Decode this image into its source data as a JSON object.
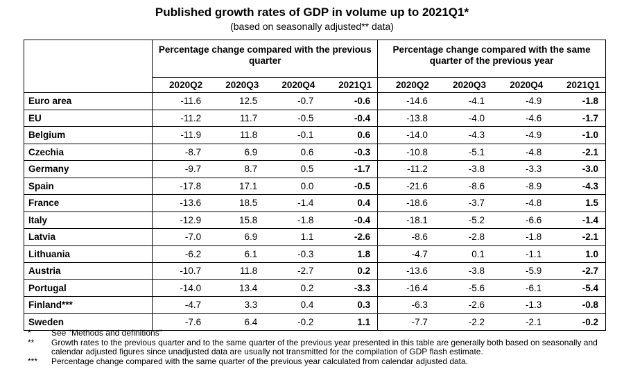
{
  "title": "Published growth rates of GDP in volume up to 2021Q1*",
  "subtitle": "(based on seasonally adjusted** data)",
  "groups": {
    "prev_quarter": "Percentage change compared with the previous quarter",
    "prev_year": "Percentage change compared with the same quarter of the previous year"
  },
  "columns": [
    "2020Q2",
    "2020Q3",
    "2020Q4",
    "2021Q1",
    "2020Q2",
    "2020Q3",
    "2020Q4",
    "2021Q1"
  ],
  "rows": [
    {
      "country": "Euro area",
      "v": [
        "-11.6",
        "12.5",
        "-0.7",
        "-0.6",
        "-14.6",
        "-4.1",
        "-4.9",
        "-1.8"
      ]
    },
    {
      "country": "EU",
      "v": [
        "-11.2",
        "11.7",
        "-0.5",
        "-0.4",
        "-13.8",
        "-4.0",
        "-4.6",
        "-1.7"
      ]
    },
    {
      "country": "Belgium",
      "v": [
        "-11.9",
        "11.8",
        "-0.1",
        "0.6",
        "-14.0",
        "-4.3",
        "-4.9",
        "-1.0"
      ]
    },
    {
      "country": "Czechia",
      "v": [
        "-8.7",
        "6.9",
        "0.6",
        "-0.3",
        "-10.8",
        "-5.1",
        "-4.8",
        "-2.1"
      ]
    },
    {
      "country": "Germany",
      "v": [
        "-9.7",
        "8.7",
        "0.5",
        "-1.7",
        "-11.2",
        "-3.8",
        "-3.3",
        "-3.0"
      ]
    },
    {
      "country": "Spain",
      "v": [
        "-17.8",
        "17.1",
        "0.0",
        "-0.5",
        "-21.6",
        "-8.6",
        "-8.9",
        "-4.3"
      ]
    },
    {
      "country": "France",
      "v": [
        "-13.6",
        "18.5",
        "-1.4",
        "0.4",
        "-18.6",
        "-3.7",
        "-4.8",
        "1.5"
      ]
    },
    {
      "country": "Italy",
      "v": [
        "-12.9",
        "15.8",
        "-1.8",
        "-0.4",
        "-18.1",
        "-5.2",
        "-6.6",
        "-1.4"
      ]
    },
    {
      "country": "Latvia",
      "v": [
        "-7.0",
        "6.9",
        "1.1",
        "-2.6",
        "-8.6",
        "-2.8",
        "-1.8",
        "-2.1"
      ]
    },
    {
      "country": "Lithuania",
      "v": [
        "-6.2",
        "6.1",
        "-0.3",
        "1.8",
        "-4.7",
        "0.1",
        "-1.1",
        "1.0"
      ]
    },
    {
      "country": "Austria",
      "v": [
        "-10.7",
        "11.8",
        "-2.7",
        "0.2",
        "-13.6",
        "-3.8",
        "-5.9",
        "-2.7"
      ]
    },
    {
      "country": "Portugal",
      "v": [
        "-14.0",
        "13.4",
        "0.2",
        "-3.3",
        "-16.4",
        "-5.6",
        "-6.1",
        "-5.4"
      ]
    },
    {
      "country": "Finland***",
      "v": [
        "-4.7",
        "3.3",
        "0.4",
        "0.3",
        "-6.3",
        "-2.6",
        "-1.3",
        "-0.8"
      ]
    },
    {
      "country": "Sweden",
      "v": [
        "-7.6",
        "6.4",
        "-0.2",
        "1.1",
        "-7.7",
        "-2.2",
        "-2.1",
        "-0.2"
      ]
    }
  ],
  "notes": [
    {
      "sym": "*",
      "text": "See \"Methods and definitions\""
    },
    {
      "sym": "**",
      "text": "Growth rates to the previous quarter and to the same quarter of the previous year presented in this table are generally both based on seasonally and calendar adjusted figures since unadjusted data are usually not transmitted for the compilation of GDP flash estimate."
    },
    {
      "sym": "***",
      "text": "Percentage change compared with the same quarter of the previous year calculated from calendar adjusted data."
    }
  ]
}
